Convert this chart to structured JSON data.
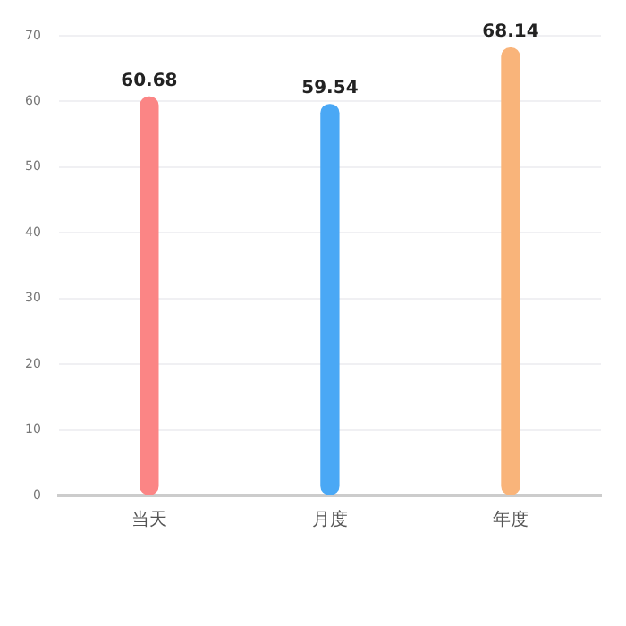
{
  "chart_data": {
    "type": "bar",
    "categories": [
      "当天",
      "月度",
      "年度"
    ],
    "values": [
      60.68,
      59.54,
      68.14
    ],
    "colors": [
      "#fb8585",
      "#4aa8f5",
      "#f9b47a"
    ],
    "ylim": [
      0,
      70
    ],
    "yticks": [
      0,
      10,
      20,
      30,
      40,
      50,
      60,
      70
    ],
    "grid": "y",
    "data_labels": true,
    "legend": false
  }
}
